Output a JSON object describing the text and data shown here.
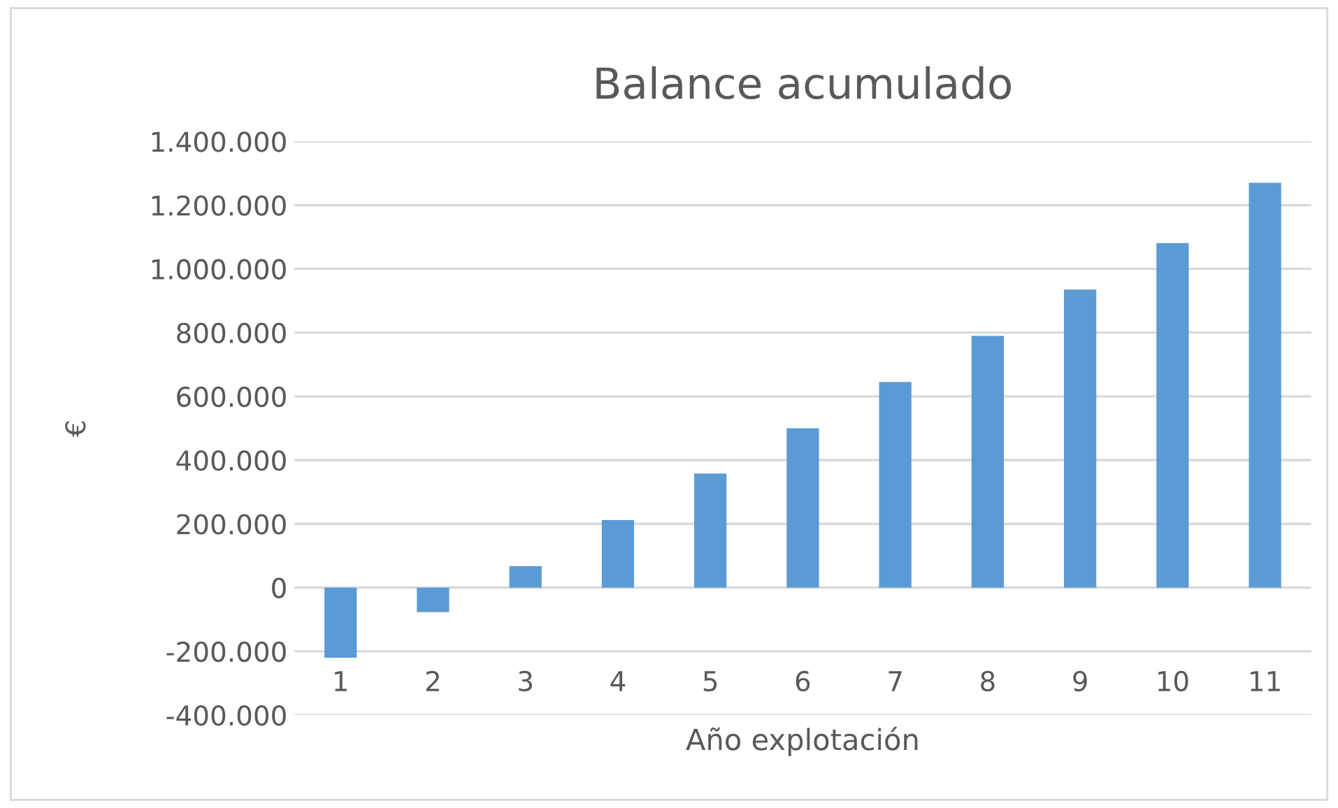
{
  "chart_data": {
    "type": "bar",
    "title": "Balance acumulado",
    "xlabel": "Año explotación",
    "ylabel": "€",
    "categories": [
      "1",
      "2",
      "3",
      "4",
      "5",
      "6",
      "7",
      "8",
      "9",
      "10",
      "11"
    ],
    "values": [
      -220000,
      -77000,
      67000,
      212000,
      358000,
      500000,
      645000,
      790000,
      935000,
      1081000,
      1270000
    ],
    "color": "#5b9bd5",
    "ylim": [
      -400000,
      1400000
    ],
    "yticks": [
      {
        "value": -400000,
        "label": "-400.000"
      },
      {
        "value": -200000,
        "label": "-200.000"
      },
      {
        "value": 0,
        "label": "0"
      },
      {
        "value": 200000,
        "label": "200.000"
      },
      {
        "value": 400000,
        "label": "400.000"
      },
      {
        "value": 600000,
        "label": "600.000"
      },
      {
        "value": 800000,
        "label": "800.000"
      },
      {
        "value": 1000000,
        "label": "1.000.000"
      },
      {
        "value": 1200000,
        "label": "1.200.000"
      },
      {
        "value": 1400000,
        "label": "1.400.000"
      }
    ],
    "grid": "y",
    "legend": false
  }
}
